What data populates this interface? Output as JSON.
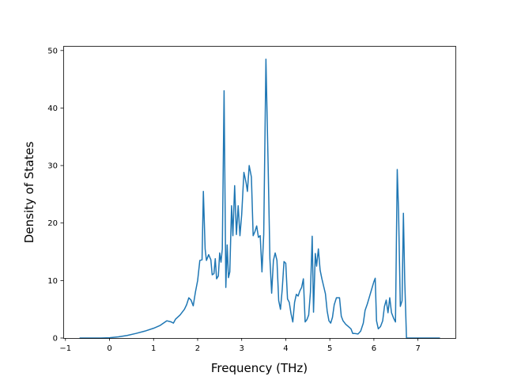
{
  "chart_data": {
    "type": "line",
    "xlabel": "Frequency (THz)",
    "ylabel": "Density of States",
    "xlim": [
      -1.05,
      7.85
    ],
    "ylim": [
      0,
      50.8
    ],
    "grid": false,
    "xticks": [
      -1,
      0,
      1,
      2,
      3,
      4,
      5,
      6,
      7
    ],
    "yticks": [
      0,
      10,
      20,
      30,
      40,
      50
    ],
    "series_color": "#1f77b4",
    "series": [
      {
        "points": [
          [
            -0.68,
            0
          ],
          [
            -0.2,
            0
          ],
          [
            0.0,
            0.05
          ],
          [
            0.2,
            0.2
          ],
          [
            0.4,
            0.45
          ],
          [
            0.6,
            0.8
          ],
          [
            0.8,
            1.2
          ],
          [
            1.0,
            1.7
          ],
          [
            1.15,
            2.2
          ],
          [
            1.3,
            3.0
          ],
          [
            1.4,
            2.8
          ],
          [
            1.45,
            2.6
          ],
          [
            1.5,
            3.3
          ],
          [
            1.6,
            4.0
          ],
          [
            1.7,
            5.0
          ],
          [
            1.75,
            5.8
          ],
          [
            1.8,
            7.0
          ],
          [
            1.85,
            6.6
          ],
          [
            1.9,
            5.6
          ],
          [
            1.95,
            8.0
          ],
          [
            2.0,
            10.0
          ],
          [
            2.05,
            13.5
          ],
          [
            2.1,
            13.6
          ],
          [
            2.13,
            25.5
          ],
          [
            2.17,
            15.5
          ],
          [
            2.2,
            13.5
          ],
          [
            2.25,
            14.5
          ],
          [
            2.3,
            13.6
          ],
          [
            2.33,
            11.0
          ],
          [
            2.37,
            11.2
          ],
          [
            2.4,
            13.8
          ],
          [
            2.43,
            10.3
          ],
          [
            2.47,
            10.8
          ],
          [
            2.5,
            14.8
          ],
          [
            2.53,
            13.2
          ],
          [
            2.56,
            15.5
          ],
          [
            2.6,
            43.0
          ],
          [
            2.64,
            8.8
          ],
          [
            2.67,
            16.2
          ],
          [
            2.7,
            10.5
          ],
          [
            2.73,
            11.5
          ],
          [
            2.77,
            23.0
          ],
          [
            2.8,
            17.8
          ],
          [
            2.84,
            26.5
          ],
          [
            2.88,
            18.0
          ],
          [
            2.92,
            23.0
          ],
          [
            2.96,
            17.8
          ],
          [
            3.0,
            21.5
          ],
          [
            3.05,
            28.8
          ],
          [
            3.1,
            27.0
          ],
          [
            3.13,
            25.5
          ],
          [
            3.17,
            30.0
          ],
          [
            3.22,
            28.0
          ],
          [
            3.26,
            17.8
          ],
          [
            3.3,
            18.5
          ],
          [
            3.34,
            19.5
          ],
          [
            3.38,
            17.5
          ],
          [
            3.42,
            17.8
          ],
          [
            3.46,
            11.5
          ],
          [
            3.5,
            18.0
          ],
          [
            3.55,
            48.5
          ],
          [
            3.6,
            30.0
          ],
          [
            3.64,
            13.8
          ],
          [
            3.68,
            7.8
          ],
          [
            3.72,
            13.5
          ],
          [
            3.76,
            14.8
          ],
          [
            3.8,
            13.5
          ],
          [
            3.84,
            6.5
          ],
          [
            3.88,
            5.0
          ],
          [
            3.92,
            8.5
          ],
          [
            3.96,
            13.3
          ],
          [
            4.0,
            13.0
          ],
          [
            4.04,
            6.8
          ],
          [
            4.08,
            6.2
          ],
          [
            4.12,
            4.2
          ],
          [
            4.16,
            2.8
          ],
          [
            4.2,
            6.2
          ],
          [
            4.24,
            7.6
          ],
          [
            4.28,
            7.3
          ],
          [
            4.32,
            8.2
          ],
          [
            4.36,
            8.8
          ],
          [
            4.4,
            10.3
          ],
          [
            4.44,
            2.8
          ],
          [
            4.48,
            3.2
          ],
          [
            4.52,
            4.0
          ],
          [
            4.56,
            8.0
          ],
          [
            4.6,
            17.7
          ],
          [
            4.63,
            4.5
          ],
          [
            4.67,
            14.7
          ],
          [
            4.7,
            12.5
          ],
          [
            4.74,
            15.5
          ],
          [
            4.78,
            11.8
          ],
          [
            4.82,
            10.3
          ],
          [
            4.86,
            9.0
          ],
          [
            4.9,
            7.7
          ],
          [
            4.94,
            4.7
          ],
          [
            4.98,
            3.0
          ],
          [
            5.02,
            2.6
          ],
          [
            5.06,
            3.6
          ],
          [
            5.1,
            5.8
          ],
          [
            5.15,
            7.0
          ],
          [
            5.22,
            7.0
          ],
          [
            5.26,
            3.8
          ],
          [
            5.3,
            3.0
          ],
          [
            5.36,
            2.4
          ],
          [
            5.42,
            2.0
          ],
          [
            5.48,
            1.6
          ],
          [
            5.52,
            0.8
          ],
          [
            5.56,
            0.8
          ],
          [
            5.64,
            0.7
          ],
          [
            5.7,
            1.2
          ],
          [
            5.76,
            2.6
          ],
          [
            5.8,
            4.8
          ],
          [
            5.85,
            5.9
          ],
          [
            5.9,
            7.2
          ],
          [
            5.95,
            8.5
          ],
          [
            6.0,
            9.8
          ],
          [
            6.03,
            10.4
          ],
          [
            6.06,
            3.0
          ],
          [
            6.1,
            1.6
          ],
          [
            6.15,
            2.0
          ],
          [
            6.2,
            3.0
          ],
          [
            6.24,
            5.5
          ],
          [
            6.28,
            6.6
          ],
          [
            6.32,
            4.4
          ],
          [
            6.36,
            7.0
          ],
          [
            6.4,
            4.4
          ],
          [
            6.45,
            3.4
          ],
          [
            6.49,
            2.8
          ],
          [
            6.53,
            29.3
          ],
          [
            6.56,
            22.0
          ],
          [
            6.6,
            5.5
          ],
          [
            6.64,
            6.5
          ],
          [
            6.67,
            21.7
          ],
          [
            6.7,
            10.0
          ],
          [
            6.74,
            0
          ],
          [
            7.5,
            0
          ]
        ]
      }
    ]
  }
}
